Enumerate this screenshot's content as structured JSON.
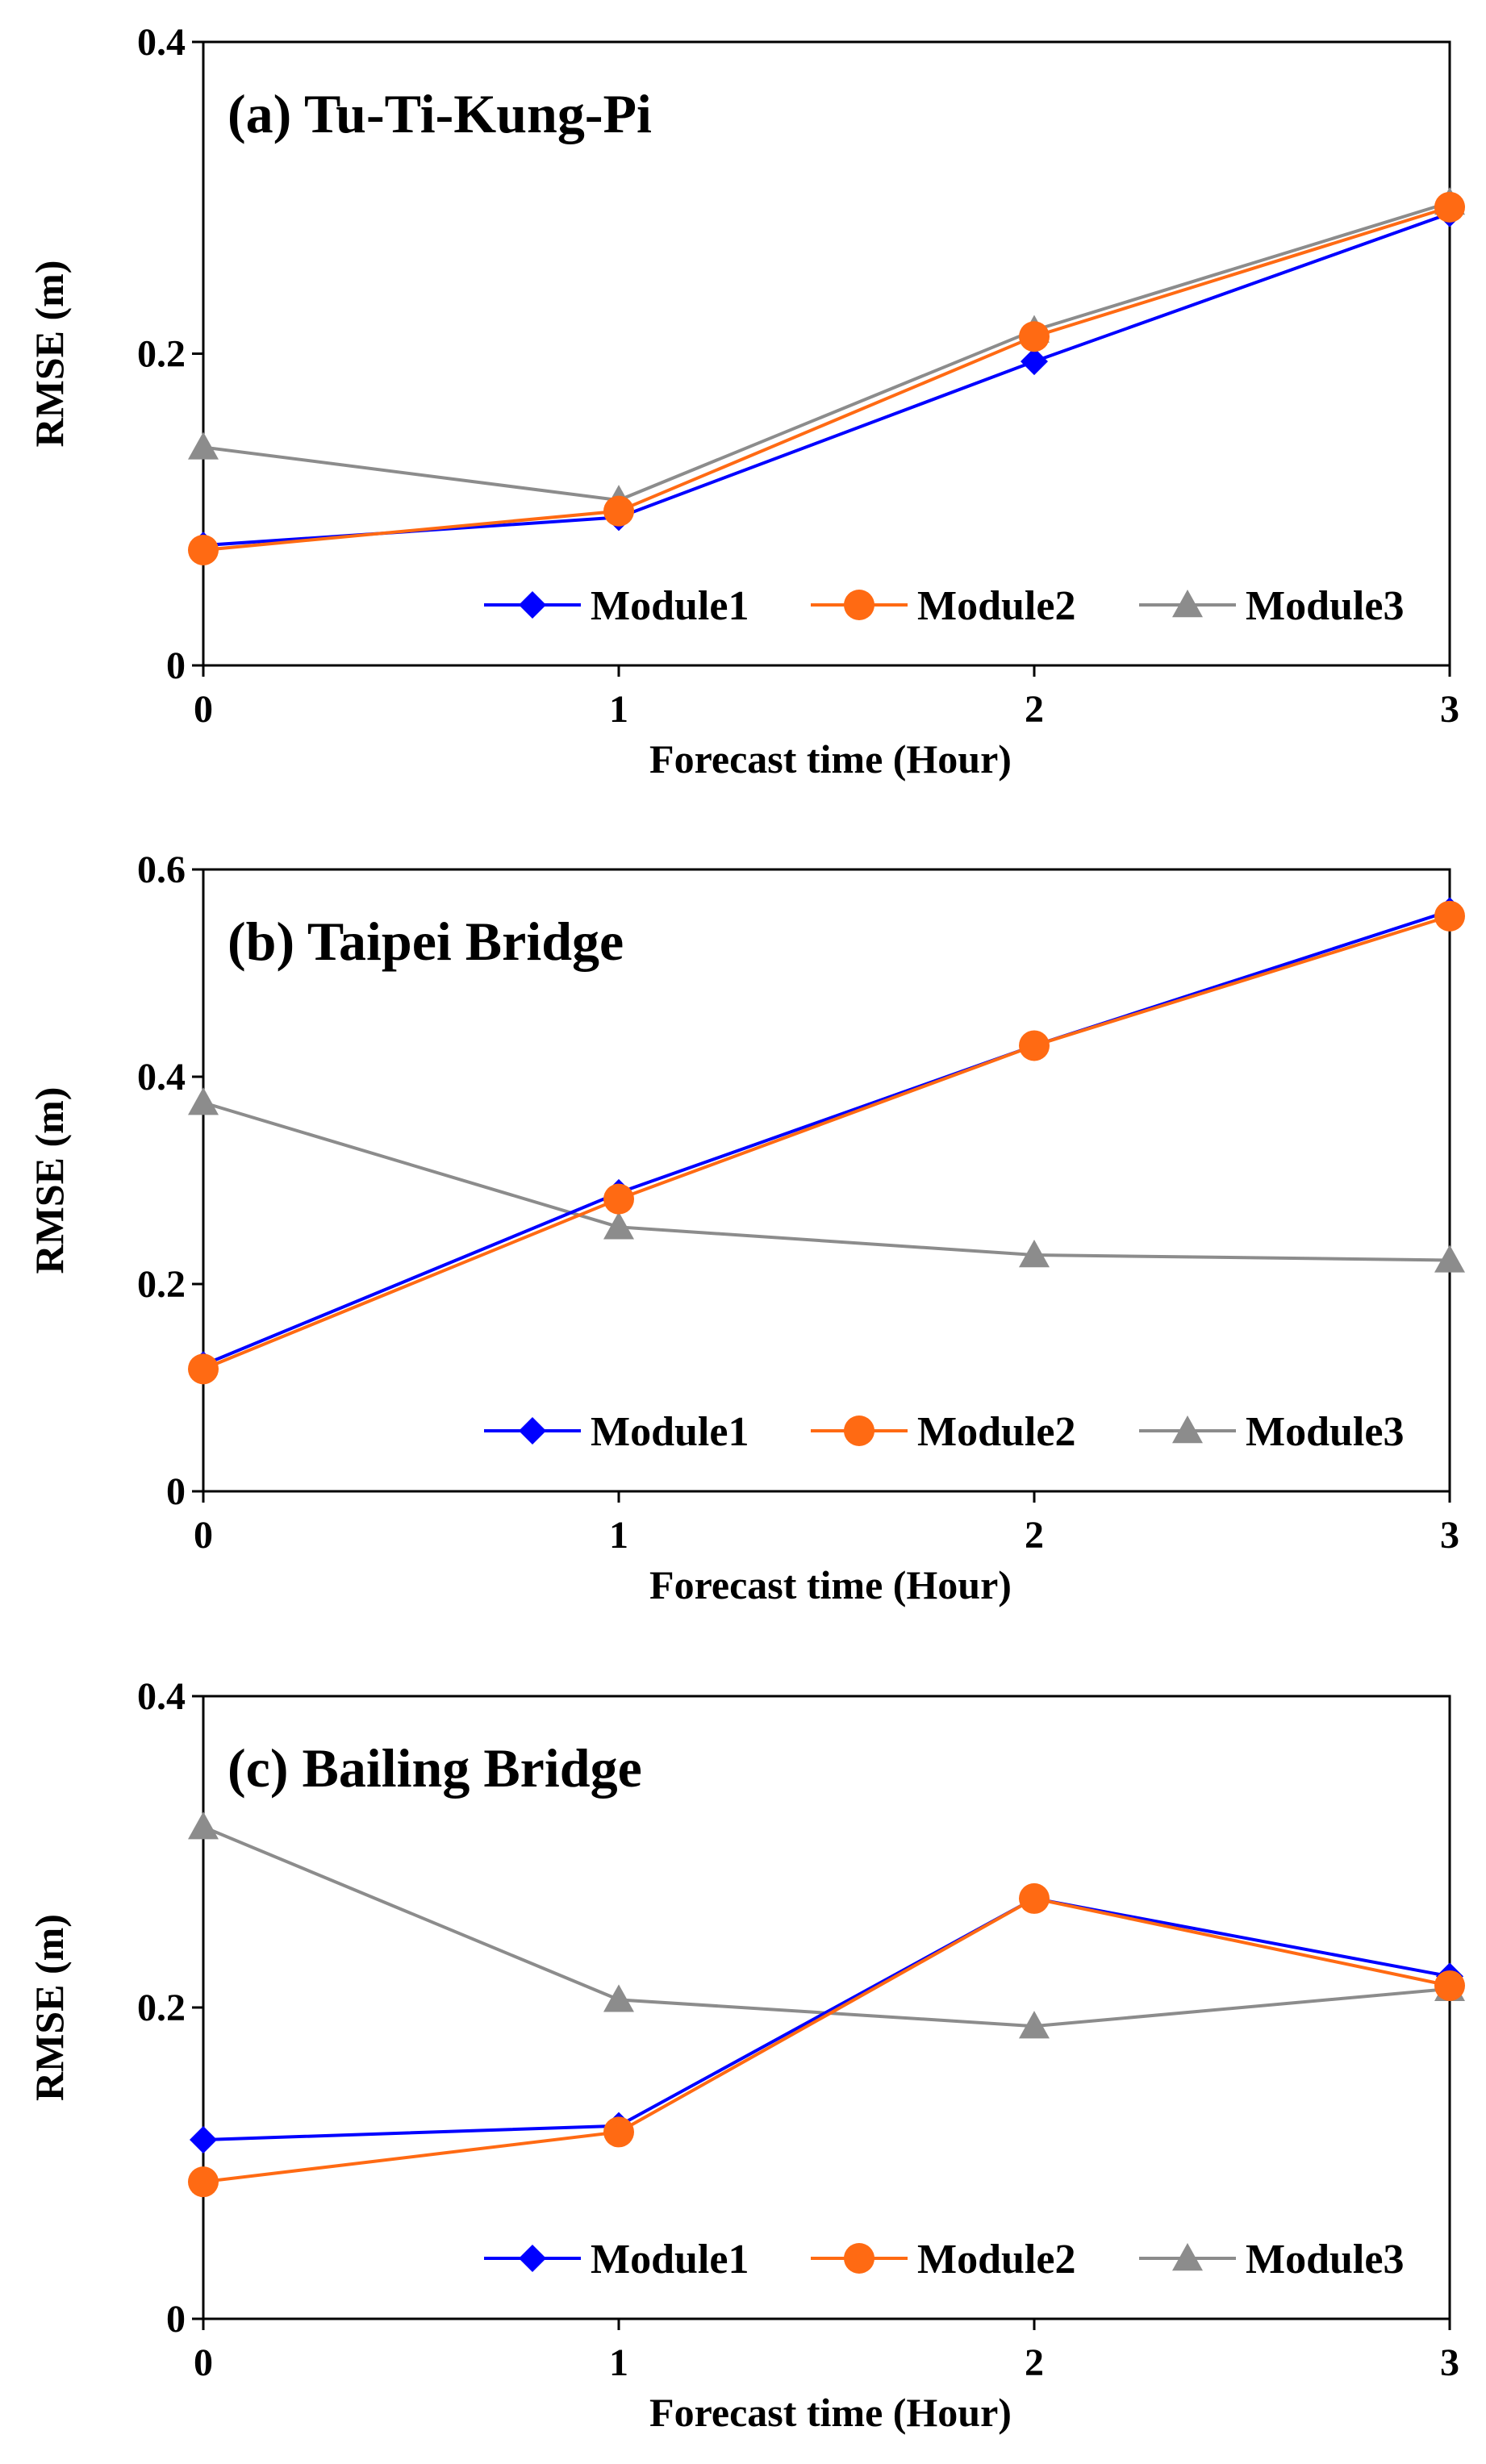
{
  "chart_data": [
    {
      "type": "line",
      "title": "(a) Tu-Ti-Kung-Pi",
      "xlabel": "Forecast time (Hour)",
      "ylabel": "RMSE (m)",
      "x": [
        0,
        1,
        2,
        3
      ],
      "xticks": [
        "0",
        "1",
        "2",
        "3"
      ],
      "ylim": [
        0,
        0.4
      ],
      "yticks": [
        "0",
        "0.2",
        "0.4"
      ],
      "legend_position": "bottom-right",
      "series": [
        {
          "name": "Module1",
          "values": [
            0.077,
            0.095,
            0.195,
            0.29
          ],
          "color": "#0000ff",
          "marker": "diamond"
        },
        {
          "name": "Module2",
          "values": [
            0.074,
            0.099,
            0.211,
            0.294
          ],
          "color": "#ff6a13",
          "marker": "circle"
        },
        {
          "name": "Module3",
          "values": [
            0.14,
            0.106,
            0.215,
            0.297
          ],
          "color": "#8c8c8c",
          "marker": "triangle"
        }
      ]
    },
    {
      "type": "line",
      "title": "(b) Taipei Bridge",
      "xlabel": "Forecast time (Hour)",
      "ylabel": "RMSE (m)",
      "x": [
        0,
        1,
        2,
        3
      ],
      "xticks": [
        "0",
        "1",
        "2",
        "3"
      ],
      "ylim": [
        0,
        0.6
      ],
      "yticks": [
        "0",
        "0.2",
        "0.4",
        "0.6"
      ],
      "legend_position": "bottom-right",
      "series": [
        {
          "name": "Module1",
          "values": [
            0.122,
            0.288,
            0.43,
            0.56
          ],
          "color": "#0000ff",
          "marker": "diamond"
        },
        {
          "name": "Module2",
          "values": [
            0.118,
            0.282,
            0.43,
            0.555
          ],
          "color": "#ff6a13",
          "marker": "circle"
        },
        {
          "name": "Module3",
          "values": [
            0.375,
            0.255,
            0.228,
            0.223
          ],
          "color": "#8c8c8c",
          "marker": "triangle"
        }
      ]
    },
    {
      "type": "line",
      "title": "(c) Bailing Bridge",
      "xlabel": "Forecast time (Hour)",
      "ylabel": "RMSE (m)",
      "x": [
        0,
        1,
        2,
        3
      ],
      "xticks": [
        "0",
        "1",
        "2",
        "3"
      ],
      "ylim": [
        0,
        0.4
      ],
      "yticks": [
        "0",
        "0.2",
        "0.4"
      ],
      "legend_position": "bottom-right",
      "series": [
        {
          "name": "Module1",
          "values": [
            0.115,
            0.124,
            0.27,
            0.22
          ],
          "color": "#0000ff",
          "marker": "diamond"
        },
        {
          "name": "Module2",
          "values": [
            0.088,
            0.12,
            0.27,
            0.214
          ],
          "color": "#ff6a13",
          "marker": "circle"
        },
        {
          "name": "Module3",
          "values": [
            0.316,
            0.205,
            0.188,
            0.212
          ],
          "color": "#8c8c8c",
          "marker": "triangle"
        }
      ]
    }
  ]
}
